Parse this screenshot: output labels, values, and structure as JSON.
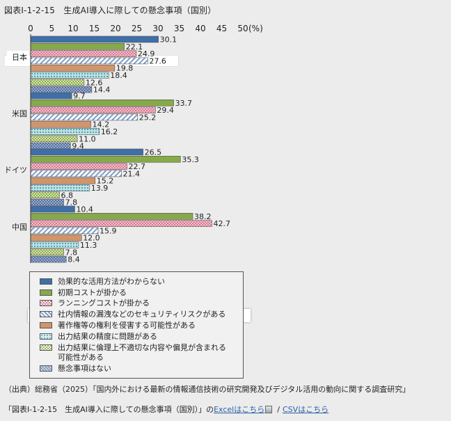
{
  "title": "図表Ⅰ-1-2-15　生成AI導入に際しての懸念事項（国別）",
  "chart_data": {
    "type": "bar",
    "orientation": "horizontal",
    "title": "図表Ⅰ-1-2-15　生成AI導入に際しての懸念事項（国別）",
    "x_ticks": [
      "0",
      "5",
      "10",
      "15",
      "20",
      "25",
      "30",
      "35",
      "40",
      "45",
      "50"
    ],
    "x_unit": "(%)",
    "xlim": [
      0,
      50
    ],
    "grid": false,
    "legend_position": "bottom-left",
    "categories": [
      "日本",
      "米国",
      "ドイツ",
      "中国"
    ],
    "highlighted_category": "日本",
    "highlighted_series": "社内情報の漏洩などのセキュリティリスクがある",
    "series": [
      {
        "name": "効果的な活用方法がわからない",
        "color": "#3f6fa7",
        "pattern": "solid",
        "values": [
          30.1,
          9.7,
          26.5,
          10.4
        ]
      },
      {
        "name": "初期コストが掛かる",
        "color": "#86a94a",
        "pattern": "solid",
        "values": [
          22.1,
          33.7,
          35.3,
          38.2
        ]
      },
      {
        "name": "ランニングコストが掛かる",
        "color": "#d9788f",
        "pattern": "checker",
        "values": [
          24.9,
          29.4,
          22.7,
          42.7
        ]
      },
      {
        "name": "社内情報の漏洩などのセキュリティリスクがある",
        "color": "#7e9cc7",
        "pattern": "diagonal",
        "values": [
          27.6,
          25.2,
          21.4,
          15.9
        ]
      },
      {
        "name": "著作権等の権利を侵害する可能性がある",
        "color": "#d2956a",
        "pattern": "solid",
        "values": [
          19.8,
          14.2,
          15.2,
          12.0
        ]
      },
      {
        "name": "出力結果の精度に問題がある",
        "color": "#5fb3c0",
        "pattern": "dots",
        "values": [
          18.4,
          16.2,
          13.9,
          11.3
        ]
      },
      {
        "name": "出力結果に倫理上不適切な内容や偏見が含まれる\n可能性がある",
        "color": "#9cbb5a",
        "pattern": "checker",
        "values": [
          12.6,
          11.0,
          6.8,
          7.8
        ]
      },
      {
        "name": "懸念事項はない",
        "color": "#7088b4",
        "pattern": "crosshatch",
        "values": [
          14.4,
          9.4,
          7.8,
          8.4
        ]
      }
    ]
  },
  "source": "（出典）総務省（2025）「国内外における最新の情報通信技術の研究開発及びデジタル活用の動向に関する調査研究」",
  "footer": {
    "prefix": "「図表Ⅰ-1-2-15　生成AI導入に際しての懸念事項（国別）」の",
    "excel_link": "Excelはこちら",
    "separator": "/",
    "csv_link": "CSVはこちら"
  }
}
